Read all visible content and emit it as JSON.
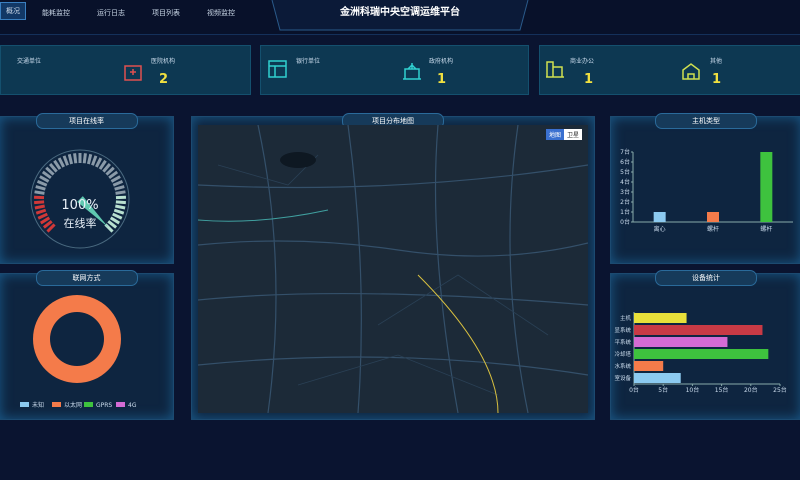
{
  "header": {
    "title": "金洲科瑞中央空调运维平台"
  },
  "nav": [
    "概况",
    "能耗监控",
    "运行日志",
    "项目列表",
    "视频监控"
  ],
  "stats": [
    {
      "left": "交通单位",
      "right": "医院机构",
      "value": "2"
    },
    {
      "left": "银行单位",
      "right": "政府机构",
      "value": "1"
    },
    {
      "left": "商业办公",
      "right": "其他",
      "value": "1"
    }
  ],
  "panels": {
    "online": "项目在线率",
    "map": "项目分布地图",
    "host": "主机类型",
    "network": "联网方式",
    "devices": "设备统计"
  },
  "map": {
    "buttons": [
      "地图",
      "卫星"
    ]
  },
  "chart_data": [
    {
      "type": "gauge",
      "values": [
        100
      ],
      "value_labels": [
        "100%"
      ],
      "label": "在线率",
      "ylim": [
        0,
        100
      ],
      "color": "#5fc8b0"
    },
    {
      "type": "bar",
      "categories": [
        "离心",
        "螺杆",
        "螺杆"
      ],
      "values": [
        1,
        1,
        7
      ],
      "colors": [
        "#8ccaf0",
        "#f47b4a",
        "#3ec23e"
      ],
      "ylim": [
        0,
        7
      ],
      "yticks": [
        {
          "value": 0,
          "label": "0台"
        },
        {
          "value": 1,
          "label": "1台"
        },
        {
          "value": 2,
          "label": "2台"
        },
        {
          "value": 3,
          "label": "3台"
        },
        {
          "value": 4,
          "label": "4台"
        },
        {
          "value": 5,
          "label": "5台"
        },
        {
          "value": 6,
          "label": "6台"
        },
        {
          "value": 7,
          "label": "7台"
        }
      ]
    },
    {
      "type": "pie",
      "series": [
        {
          "name": "未知",
          "color": "#8ccaf0",
          "values": [
            0
          ]
        },
        {
          "name": "以太网",
          "color": "#f47b4a",
          "values": [
            4
          ]
        },
        {
          "name": "GPRS",
          "color": "#3ec23e",
          "values": [
            0
          ]
        },
        {
          "name": "4G",
          "color": "#d46bd4",
          "values": [
            0
          ]
        }
      ]
    },
    {
      "type": "hbar",
      "categories": [
        "主机",
        "显系统",
        "平系统",
        "冷却塔",
        "水系统",
        "室设备"
      ],
      "values": [
        9,
        22,
        16,
        23,
        5,
        8
      ],
      "colors": [
        "#e8e03a",
        "#c83a45",
        "#d46bd4",
        "#3ec23e",
        "#f47b4a",
        "#8ccaf0"
      ],
      "xlim": [
        0,
        25
      ],
      "xticks": [
        {
          "value": 0,
          "label": "0台"
        },
        {
          "value": 5,
          "label": "5台"
        },
        {
          "value": 10,
          "label": "10台"
        },
        {
          "value": 15,
          "label": "15台"
        },
        {
          "value": 20,
          "label": "20台"
        },
        {
          "value": 25,
          "label": "25台"
        }
      ]
    }
  ]
}
